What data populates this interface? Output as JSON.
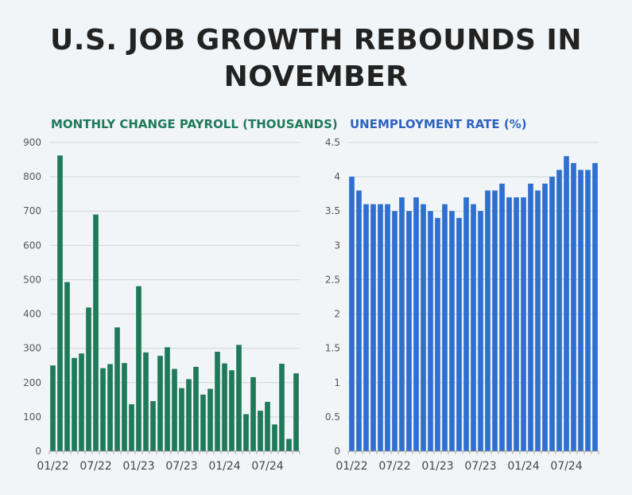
{
  "title": {
    "line1": "U.S. JOB GROWTH REBOUNDS IN",
    "line2": "NOVEMBER"
  },
  "colors": {
    "payroll_bar": "#1e7a5a",
    "unemployment_bar": "#2f6fd0",
    "payroll_title": "#1e7a5a",
    "unemployment_title": "#2d62c0",
    "grid": "#d0d5d9",
    "background": "#f2f5f7"
  },
  "chart_data": [
    {
      "type": "bar",
      "title": "MONTHLY CHANGE PAYROLL (THOUSANDS)",
      "xlabel": "",
      "ylabel": "",
      "ylim": [
        0,
        900
      ],
      "y_ticks": [
        "0",
        "100",
        "200",
        "300",
        "400",
        "500",
        "600",
        "700",
        "800",
        "900"
      ],
      "x_tick_labels": [
        "01/22",
        "07/22",
        "01/23",
        "07/23",
        "01/24",
        "07/24"
      ],
      "x_tick_indices": [
        0,
        6,
        12,
        18,
        24,
        30
      ],
      "grid": true,
      "categories": [
        "01/22",
        "02/22",
        "03/22",
        "04/22",
        "05/22",
        "06/22",
        "07/22",
        "08/22",
        "09/22",
        "10/22",
        "11/22",
        "12/22",
        "01/23",
        "02/23",
        "03/23",
        "04/23",
        "05/23",
        "06/23",
        "07/23",
        "08/23",
        "09/23",
        "10/23",
        "11/23",
        "12/23",
        "01/24",
        "02/24",
        "03/24",
        "04/24",
        "05/24",
        "06/24",
        "07/24",
        "08/24",
        "09/24",
        "10/24",
        "11/24"
      ],
      "values": [
        250,
        862,
        493,
        272,
        285,
        419,
        690,
        242,
        254,
        361,
        257,
        137,
        481,
        288,
        146,
        278,
        303,
        240,
        184,
        210,
        246,
        165,
        182,
        290,
        256,
        236,
        310,
        108,
        216,
        118,
        144,
        78,
        255,
        36,
        227
      ]
    },
    {
      "type": "bar",
      "title": "UNEMPLOYMENT RATE (%)",
      "xlabel": "",
      "ylabel": "",
      "ylim": [
        0,
        4.5
      ],
      "y_ticks": [
        "0",
        "0.5",
        "1",
        "1.5",
        "2",
        "2.5",
        "3",
        "3.5",
        "4",
        "4.5"
      ],
      "x_tick_labels": [
        "01/22",
        "07/22",
        "01/23",
        "07/23",
        "01/24",
        "07/24"
      ],
      "x_tick_indices": [
        0,
        6,
        12,
        18,
        24,
        30
      ],
      "grid": true,
      "categories": [
        "01/22",
        "02/22",
        "03/22",
        "04/22",
        "05/22",
        "06/22",
        "07/22",
        "08/22",
        "09/22",
        "10/22",
        "11/22",
        "12/22",
        "01/23",
        "02/23",
        "03/23",
        "04/23",
        "05/23",
        "06/23",
        "07/23",
        "08/23",
        "09/23",
        "10/23",
        "11/23",
        "12/23",
        "01/24",
        "02/24",
        "03/24",
        "04/24",
        "05/24",
        "06/24",
        "07/24",
        "08/24",
        "09/24",
        "10/24",
        "11/24"
      ],
      "values": [
        4.0,
        3.8,
        3.6,
        3.6,
        3.6,
        3.6,
        3.5,
        3.7,
        3.5,
        3.7,
        3.6,
        3.5,
        3.4,
        3.6,
        3.5,
        3.4,
        3.7,
        3.6,
        3.5,
        3.8,
        3.8,
        3.9,
        3.7,
        3.7,
        3.7,
        3.9,
        3.8,
        3.9,
        4.0,
        4.1,
        4.3,
        4.2,
        4.1,
        4.1,
        4.2
      ]
    }
  ]
}
